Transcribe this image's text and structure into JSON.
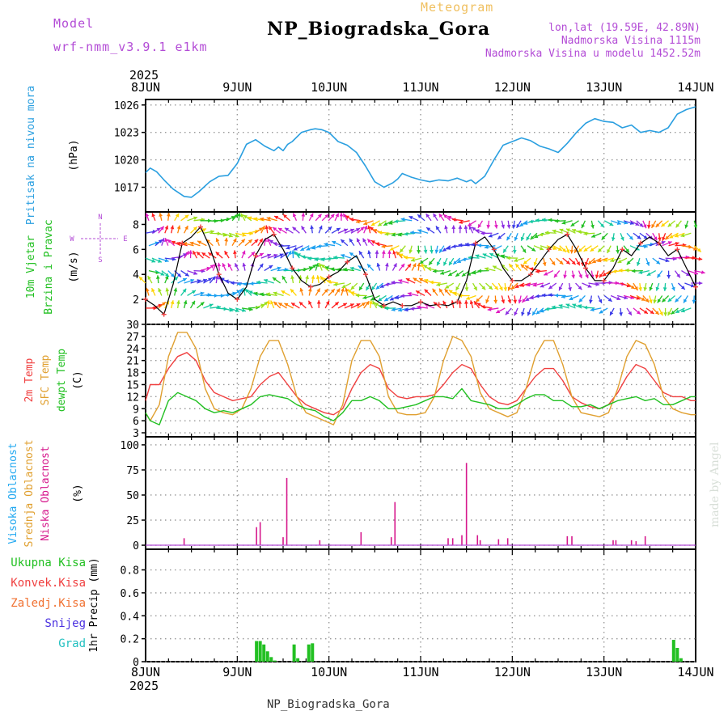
{
  "header": {
    "model_label": "Model",
    "model_name": "wrf-nmm_v3.9.1 e1km",
    "product": "Meteogram",
    "station": "NP_Biogradska_Gora",
    "lonlat": "lon,lat (19.59E, 42.89N)",
    "elevation": "Nadmorska Visina 1115m",
    "model_elevation": "Nadmorska Visina u modelu 1452.52m",
    "credit": "made by Angel",
    "footer": "NP_Biogradska_Gora"
  },
  "colors": {
    "purple": "#b34cd6",
    "orange_text": "#f0c060",
    "pressure": "#2a9fe0",
    "t2m": "#f04040",
    "sfc": "#e0a030",
    "dew": "#22c022",
    "cloud_high": "#22a8f0",
    "cloud_mid": "#e0a030",
    "cloud_low": "#d6188c",
    "precip": "#22c022"
  },
  "chart_data": [
    {
      "type": "line",
      "panel": "pressure",
      "ylabel": [
        "Pritisak na nivou mora",
        "(hPa)"
      ],
      "yticks": [
        1017,
        1020,
        1023,
        1026
      ],
      "ylim": [
        1014.3,
        1026.6
      ],
      "x_start": "2025-06-08 00:00",
      "x_end": "2025-06-14 00:00",
      "date_labels": [
        "8JUN",
        "9JUN",
        "10JUN",
        "11JUN",
        "12JUN",
        "13JUN",
        "14JUN"
      ],
      "year_label": "2025",
      "series": [
        {
          "color": "#2a9fe0",
          "x": [
            0,
            0.05,
            0.12,
            0.2,
            0.3,
            0.42,
            0.5,
            0.58,
            0.7,
            0.8,
            0.9,
            1.0,
            1.1,
            1.2,
            1.3,
            1.4,
            1.45,
            1.5,
            1.55,
            1.6,
            1.7,
            1.8,
            1.85,
            1.92,
            2.0,
            2.1,
            2.2,
            2.3,
            2.4,
            2.5,
            2.6,
            2.7,
            2.75,
            2.8,
            2.9,
            3.0,
            3.1,
            3.2,
            3.3,
            3.4,
            3.5,
            3.55,
            3.6,
            3.7,
            3.8,
            3.9,
            4.0,
            4.1,
            4.2,
            4.3,
            4.4,
            4.5,
            4.6,
            4.7,
            4.8,
            4.9,
            5.0,
            5.1,
            5.2,
            5.3,
            5.4,
            5.5,
            5.6,
            5.7,
            5.8,
            5.9,
            6.0
          ],
          "y": [
            1018.6,
            1019.1,
            1018.7,
            1017.8,
            1016.8,
            1016.0,
            1015.9,
            1016.5,
            1017.6,
            1018.2,
            1018.3,
            1019.6,
            1021.7,
            1022.2,
            1021.5,
            1021.0,
            1021.4,
            1021.0,
            1021.7,
            1022.0,
            1023.0,
            1023.3,
            1023.4,
            1023.3,
            1023.0,
            1022.0,
            1021.6,
            1020.8,
            1019.3,
            1017.6,
            1017.0,
            1017.5,
            1017.9,
            1018.5,
            1018.1,
            1017.8,
            1017.6,
            1017.8,
            1017.7,
            1018.0,
            1017.6,
            1017.8,
            1017.4,
            1018.2,
            1020.0,
            1021.6,
            1022.0,
            1022.4,
            1022.1,
            1021.5,
            1021.2,
            1020.8,
            1021.8,
            1023.0,
            1024.0,
            1024.5,
            1024.2,
            1024.1,
            1023.5,
            1023.8,
            1023.0,
            1023.2,
            1023.0,
            1023.5,
            1025.0,
            1025.5,
            1025.8
          ]
        }
      ]
    },
    {
      "type": "line",
      "panel": "wind",
      "ylabel": [
        "10m Vjetar",
        "Brzina i Pravac",
        "(m/s)"
      ],
      "compass": [
        "N",
        "W",
        "E",
        "S"
      ],
      "yticks": [
        2,
        4,
        6,
        8
      ],
      "ylim": [
        0,
        9
      ],
      "note": "wind speed line with direction arrows (rainbow colored)",
      "series": [
        {
          "color": "#000000",
          "x": [
            0,
            0.1,
            0.2,
            0.3,
            0.4,
            0.5,
            0.6,
            0.7,
            0.8,
            0.9,
            1.0,
            1.1,
            1.2,
            1.3,
            1.4,
            1.5,
            1.6,
            1.7,
            1.8,
            1.9,
            2.0,
            2.1,
            2.2,
            2.3,
            2.4,
            2.5,
            2.6,
            2.7,
            2.8,
            2.9,
            3.0,
            3.1,
            3.2,
            3.3,
            3.4,
            3.5,
            3.6,
            3.7,
            3.8,
            3.9,
            4.0,
            4.1,
            4.2,
            4.3,
            4.4,
            4.5,
            4.6,
            4.7,
            4.8,
            4.9,
            5.0,
            5.1,
            5.2,
            5.3,
            5.4,
            5.5,
            5.6,
            5.7,
            5.8,
            5.9,
            6.0
          ],
          "y": [
            2.0,
            1.5,
            0.8,
            3.2,
            6.5,
            7.0,
            7.8,
            6.2,
            4.0,
            2.5,
            2.0,
            3.0,
            5.5,
            6.8,
            7.2,
            6.0,
            4.5,
            3.5,
            3.0,
            3.2,
            3.8,
            4.2,
            5.0,
            5.5,
            4.0,
            2.0,
            1.5,
            1.8,
            1.5,
            1.5,
            1.8,
            1.5,
            1.6,
            1.5,
            1.8,
            3.5,
            6.5,
            7.0,
            6.0,
            4.5,
            3.5,
            3.5,
            4.0,
            5.0,
            6.0,
            6.8,
            7.2,
            6.0,
            4.5,
            3.5,
            3.5,
            4.5,
            6.0,
            5.5,
            6.5,
            7.0,
            6.5,
            5.5,
            6.0,
            4.5,
            3.0
          ]
        }
      ]
    },
    {
      "type": "line",
      "panel": "temperature",
      "ylabel": [
        "2m Temp",
        "SFC Temp",
        "dewpt Temp",
        "(C)"
      ],
      "yticks": [
        3,
        6,
        9,
        12,
        15,
        18,
        21,
        24,
        27,
        30
      ],
      "ylim": [
        2,
        30
      ],
      "series": [
        {
          "name": "2m Temp",
          "color": "#f04040",
          "x": [
            0,
            0.05,
            0.15,
            0.25,
            0.35,
            0.45,
            0.55,
            0.65,
            0.75,
            0.85,
            0.95,
            1.05,
            1.15,
            1.25,
            1.35,
            1.45,
            1.55,
            1.65,
            1.75,
            1.85,
            1.95,
            2.05,
            2.15,
            2.25,
            2.35,
            2.45,
            2.55,
            2.65,
            2.75,
            2.85,
            2.95,
            3.05,
            3.15,
            3.25,
            3.35,
            3.45,
            3.55,
            3.65,
            3.75,
            3.85,
            3.95,
            4.05,
            4.15,
            4.25,
            4.35,
            4.45,
            4.55,
            4.65,
            4.75,
            4.85,
            4.95,
            5.05,
            5.15,
            5.25,
            5.35,
            5.45,
            5.55,
            5.65,
            5.75,
            5.85,
            5.95,
            6.0
          ],
          "y": [
            11,
            15,
            15,
            19,
            22,
            23,
            21,
            16,
            13,
            12,
            11,
            11.5,
            12,
            15,
            17,
            18,
            15,
            12,
            10,
            9,
            8,
            7.5,
            9,
            14,
            18,
            20,
            19,
            14,
            12,
            11.5,
            12,
            12,
            12.5,
            15,
            18,
            20,
            19,
            15,
            12,
            10.5,
            10,
            11,
            14,
            17,
            19,
            19,
            16,
            12,
            10.5,
            9.5,
            9,
            10,
            13,
            17,
            20,
            19,
            16,
            13,
            12,
            12,
            11,
            11
          ]
        },
        {
          "name": "SFC Temp",
          "color": "#e0a030",
          "x": [
            0,
            0.05,
            0.15,
            0.25,
            0.35,
            0.45,
            0.55,
            0.65,
            0.75,
            0.85,
            0.95,
            1.05,
            1.15,
            1.25,
            1.35,
            1.45,
            1.55,
            1.65,
            1.75,
            1.85,
            1.95,
            2.05,
            2.15,
            2.25,
            2.35,
            2.45,
            2.55,
            2.65,
            2.75,
            2.85,
            2.95,
            3.05,
            3.15,
            3.25,
            3.35,
            3.45,
            3.55,
            3.65,
            3.75,
            3.85,
            3.95,
            4.05,
            4.15,
            4.25,
            4.35,
            4.45,
            4.55,
            4.65,
            4.75,
            4.85,
            4.95,
            5.05,
            5.15,
            5.25,
            5.35,
            5.45,
            5.55,
            5.65,
            5.75,
            5.85,
            5.95,
            6.0
          ],
          "y": [
            8,
            6,
            10,
            22,
            28,
            28,
            24,
            14,
            9,
            8,
            7.5,
            9,
            14,
            22,
            26,
            26,
            20,
            12,
            8,
            7,
            6,
            5,
            10,
            21,
            26,
            26,
            22,
            12,
            8,
            7.5,
            7.5,
            8,
            12,
            21,
            27,
            26,
            22,
            13,
            9,
            8,
            7,
            8,
            14,
            22,
            26,
            26,
            20,
            12,
            8,
            7.5,
            7,
            8,
            14,
            22,
            26,
            25,
            20,
            12,
            9,
            8,
            7.5,
            7.5
          ]
        },
        {
          "name": "dewpt Temp",
          "color": "#22c022",
          "x": [
            0,
            0.05,
            0.15,
            0.25,
            0.35,
            0.45,
            0.55,
            0.65,
            0.75,
            0.85,
            0.95,
            1.05,
            1.15,
            1.25,
            1.35,
            1.45,
            1.55,
            1.65,
            1.75,
            1.85,
            1.95,
            2.05,
            2.15,
            2.25,
            2.35,
            2.45,
            2.55,
            2.65,
            2.75,
            2.85,
            2.95,
            3.05,
            3.15,
            3.25,
            3.35,
            3.45,
            3.55,
            3.65,
            3.75,
            3.85,
            3.95,
            4.05,
            4.15,
            4.25,
            4.35,
            4.45,
            4.55,
            4.65,
            4.75,
            4.85,
            4.95,
            5.05,
            5.15,
            5.25,
            5.35,
            5.45,
            5.55,
            5.65,
            5.75,
            5.85,
            5.95,
            6.0
          ],
          "y": [
            8,
            6,
            5,
            11,
            13,
            12,
            11,
            9,
            8,
            8.5,
            8,
            9,
            10,
            12,
            12.5,
            12,
            11.5,
            10,
            9,
            8.5,
            7,
            6,
            8,
            11,
            11,
            12,
            11,
            9,
            9,
            9.5,
            10,
            11,
            12,
            12,
            11.5,
            14,
            11,
            10.5,
            10,
            9,
            9,
            10,
            11.5,
            12.5,
            12.5,
            11,
            11,
            9.5,
            9.5,
            10,
            9,
            10,
            11,
            11.5,
            12,
            11,
            11.5,
            10,
            10,
            11,
            12,
            12
          ]
        }
      ]
    },
    {
      "type": "bar",
      "panel": "cloud",
      "ylabel": [
        "Visoka Oblacnost",
        "Srednja Oblacnost",
        "Niska Oblacnost",
        "(%)"
      ],
      "yticks": [
        0,
        25,
        50,
        75,
        100
      ],
      "ylim": [
        -4,
        108
      ],
      "series": [
        {
          "name": "Niska Oblacnost",
          "color": "#d6188c",
          "x": [
            0.42,
            1.21,
            1.25,
            1.5,
            1.54,
            1.9,
            2.35,
            2.68,
            2.72,
            3.3,
            3.35,
            3.45,
            3.5,
            3.62,
            3.65,
            3.85,
            3.95,
            4.6,
            4.65,
            5.1,
            5.13,
            5.3,
            5.35,
            5.45
          ],
          "values": [
            7,
            18,
            23,
            8,
            67,
            5,
            13,
            8,
            43,
            7,
            7,
            10,
            82,
            10,
            5,
            6,
            7,
            9,
            9,
            5,
            5,
            5,
            4,
            9
          ]
        }
      ]
    },
    {
      "type": "bar",
      "panel": "precip",
      "ylabel": [
        "1hr Precip (mm)"
      ],
      "legend": [
        "Ukupna Kisa",
        "Konvek.Kisa",
        "Zaledj.Kisa",
        "Snijeg",
        "Grad"
      ],
      "legend_colors": [
        "#22c022",
        "#f04040",
        "#f07030",
        "#4a30e0",
        "#22c0c0"
      ],
      "yticks": [
        0,
        0.2,
        0.4,
        0.6,
        0.8
      ],
      "ylim": [
        0,
        0.98
      ],
      "series": [
        {
          "name": "Ukupna Kisa",
          "color": "#22c022",
          "x": [
            1.21,
            1.25,
            1.29,
            1.33,
            1.37,
            1.41,
            1.62,
            1.66,
            1.78,
            1.82,
            5.76,
            5.8,
            5.84
          ],
          "values": [
            0.18,
            0.18,
            0.15,
            0.09,
            0.04,
            0.01,
            0.15,
            0.03,
            0.15,
            0.16,
            0.19,
            0.12,
            0.03
          ]
        }
      ]
    }
  ]
}
